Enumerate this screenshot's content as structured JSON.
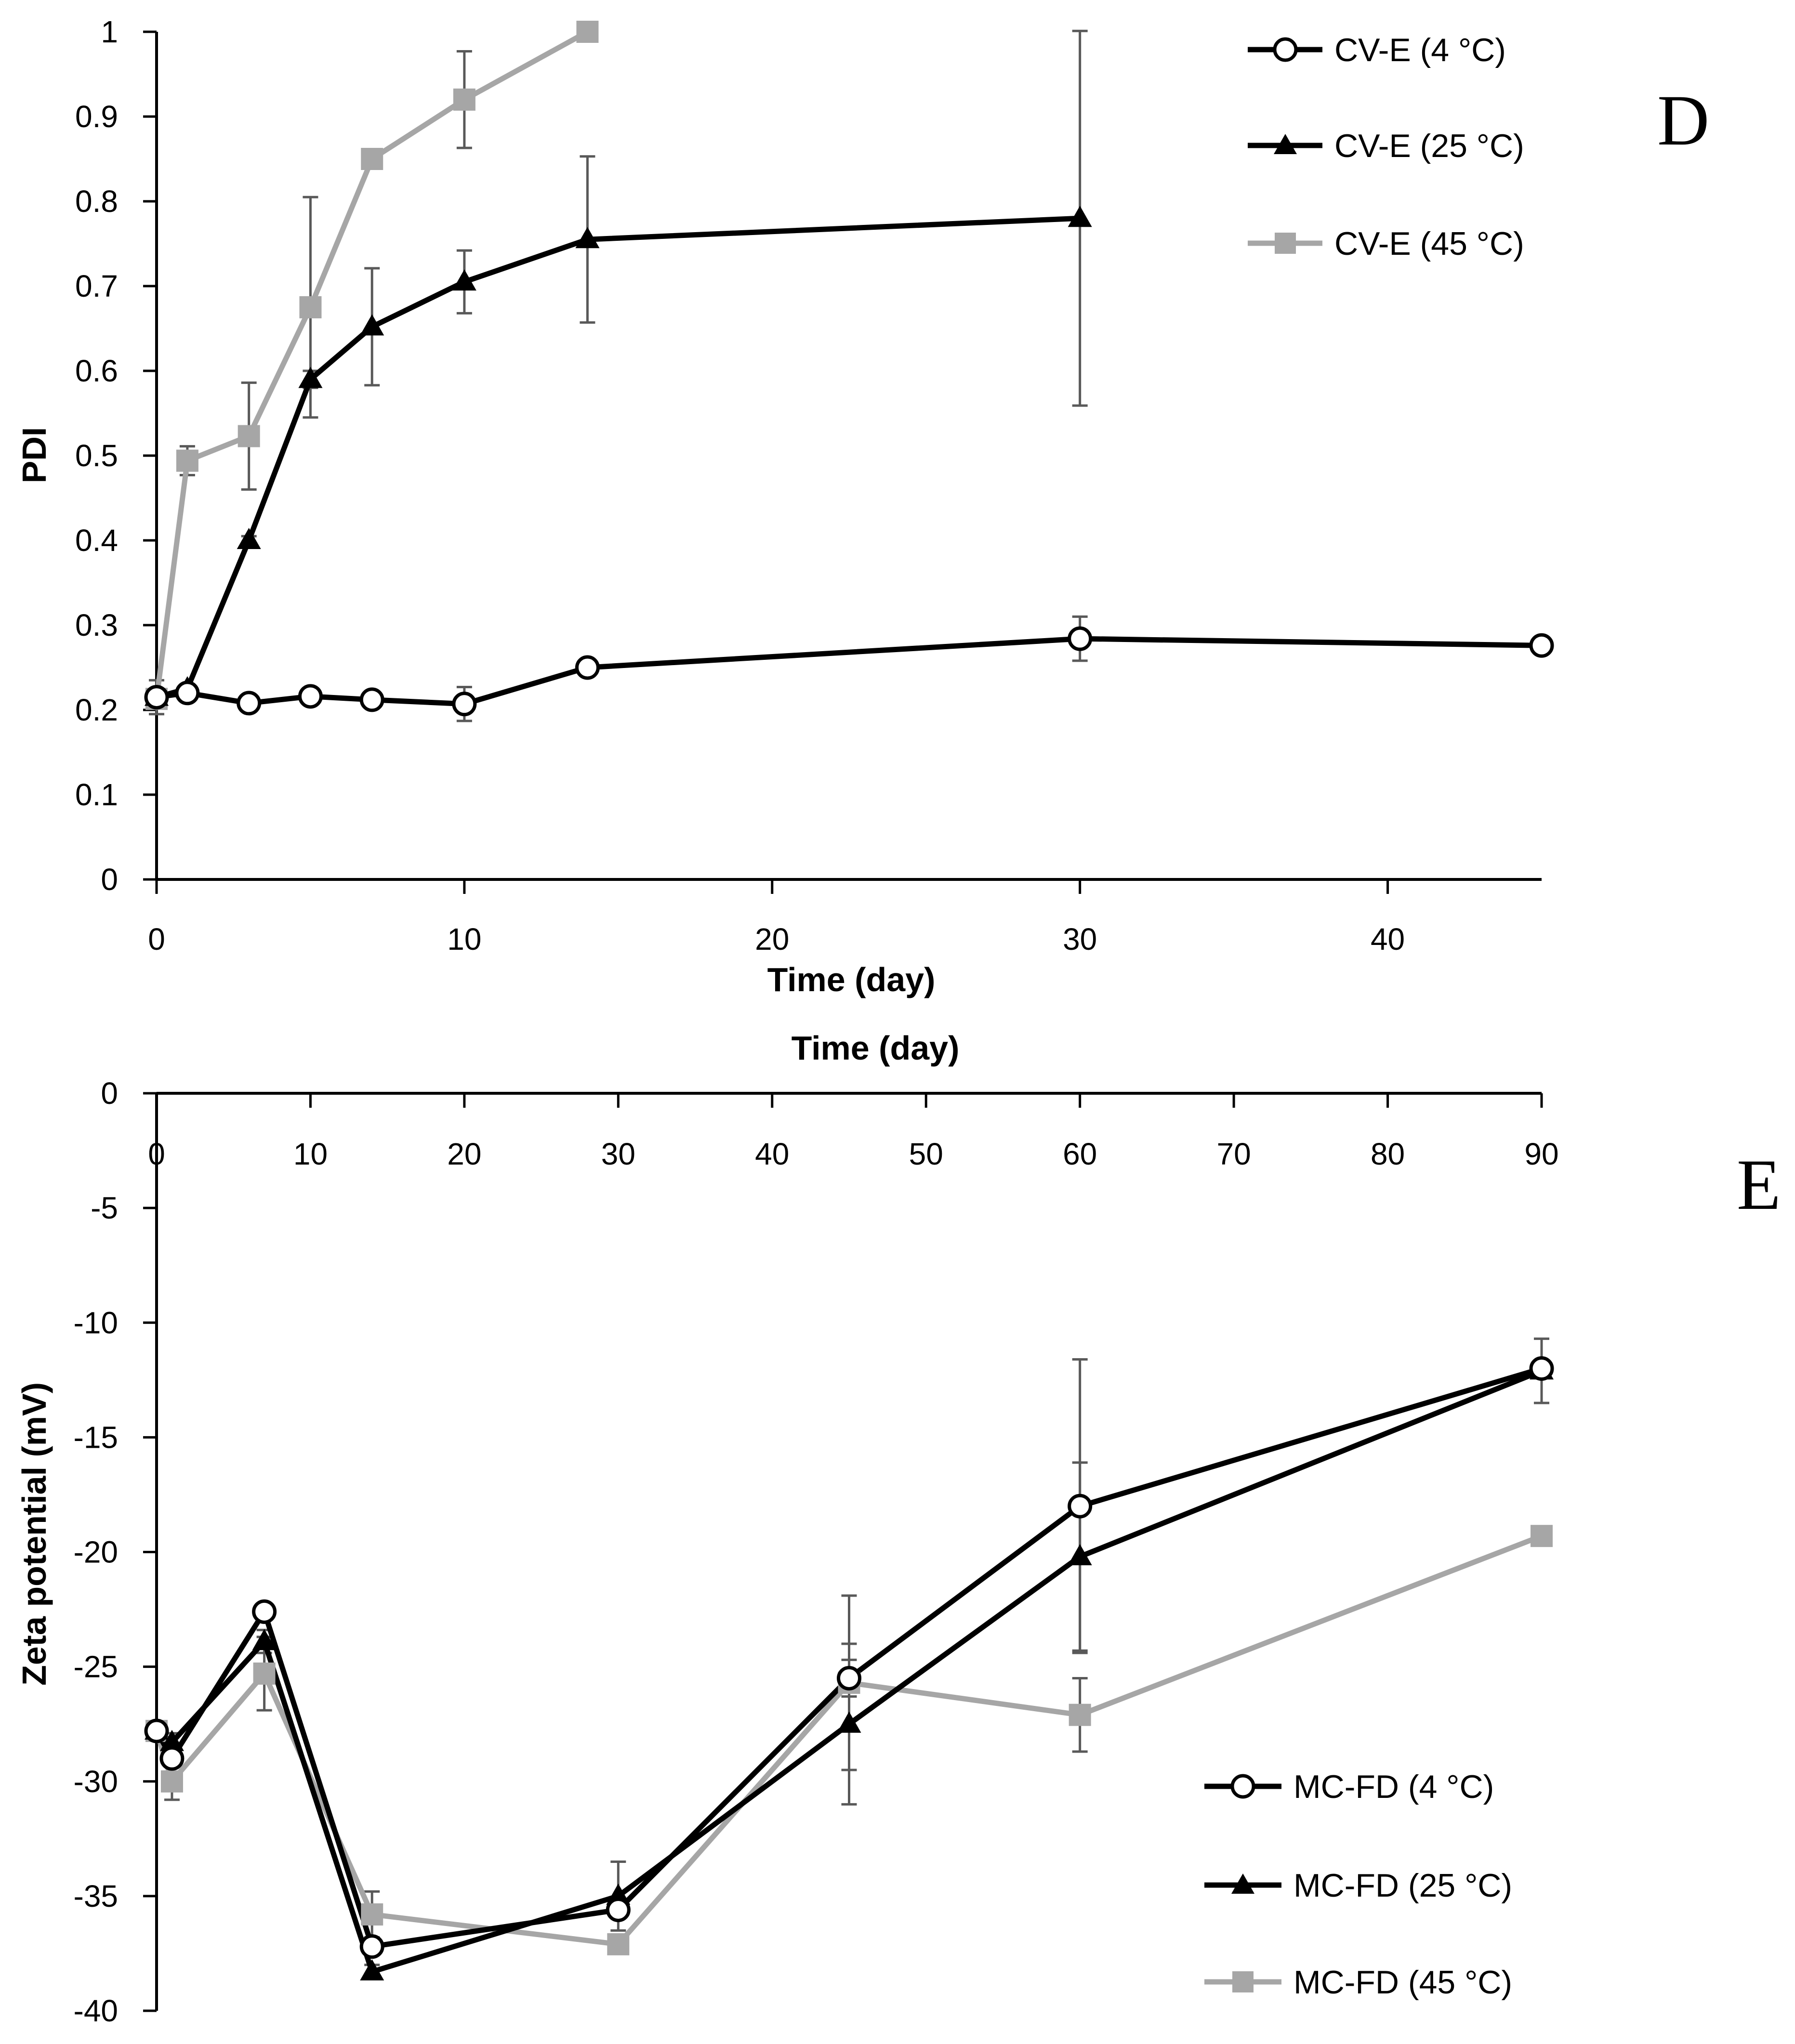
{
  "colors": {
    "black_series": "#000000",
    "gray_series": "#a6a6a6",
    "error_bar": "#595959"
  },
  "chart_data": [
    {
      "panel": "D",
      "type": "line",
      "xlabel": "Time (day)",
      "ylabel": "PDI",
      "xlim": [
        0,
        45
      ],
      "ylim": [
        0,
        1
      ],
      "xticks": [
        0,
        10,
        20,
        30,
        40
      ],
      "yticks": [
        0,
        0.1,
        0.2,
        0.3,
        0.4,
        0.5,
        0.6,
        0.7,
        0.8,
        0.9,
        1
      ],
      "ytick_labels": [
        "0",
        "0.1",
        "0.2",
        "0.3",
        "0.4",
        "0.5",
        "0.6",
        "0.7",
        "0.8",
        "0.9",
        "1"
      ],
      "legend_position": "top-right",
      "series": [
        {
          "name": "CV-E (4 °C)",
          "marker": "circle-open",
          "color": "#000000",
          "x": [
            0,
            1,
            3,
            5,
            7,
            10,
            14,
            30,
            45
          ],
          "y": [
            0.215,
            0.22,
            0.208,
            0.216,
            0.212,
            0.207,
            0.25,
            0.284,
            0.276
          ],
          "err": [
            0.02,
            0.005,
            0.005,
            0.005,
            0.005,
            0.02,
            0.006,
            0.026,
            0.005
          ]
        },
        {
          "name": "CV-E (25 °C)",
          "marker": "triangle-filled",
          "color": "#000000",
          "x": [
            0,
            1,
            3,
            5,
            7,
            10,
            14,
            30
          ],
          "y": [
            0.215,
            0.225,
            0.4,
            0.59,
            0.652,
            0.705,
            0.755,
            0.78
          ],
          "err": [
            0.01,
            0.005,
            0.005,
            0.01,
            0.069,
            0.037,
            0.098,
            0.221
          ]
        },
        {
          "name": "CV-E (45 °C)",
          "marker": "square-filled",
          "color": "#a6a6a6",
          "x": [
            0,
            1,
            3,
            5,
            7,
            10,
            14
          ],
          "y": [
            0.213,
            0.494,
            0.523,
            0.675,
            0.85,
            0.92,
            1.0
          ],
          "err": [
            0.01,
            0.017,
            0.063,
            0.13,
            0.005,
            0.057,
            0.005
          ]
        }
      ]
    },
    {
      "panel": "E",
      "type": "line",
      "xlabel": "Time (day)",
      "ylabel": "Zeta potential (mV)",
      "xlim": [
        0,
        90
      ],
      "ylim": [
        -40,
        0
      ],
      "xticks": [
        0,
        10,
        20,
        30,
        40,
        50,
        60,
        70,
        80,
        90
      ],
      "yticks": [
        0,
        -5,
        -10,
        -15,
        -20,
        -25,
        -30,
        -35,
        -40
      ],
      "ytick_labels": [
        "0",
        "-5",
        "-10",
        "-15",
        "-20",
        "-25",
        "-30",
        "-35",
        "-40"
      ],
      "legend_position": "bottom-right",
      "series": [
        {
          "name": "MC-FD (4 °C)",
          "marker": "circle-open",
          "color": "#000000",
          "x": [
            0,
            1,
            7,
            14,
            30,
            45,
            60,
            90
          ],
          "y": [
            -27.8,
            -29.0,
            -22.6,
            -37.2,
            -35.6,
            -25.5,
            -18.0,
            -12.0
          ],
          "err": [
            0.2,
            0.3,
            0.3,
            0.3,
            0.3,
            0.8,
            6.4,
            0.3
          ]
        },
        {
          "name": "MC-FD (25 °C)",
          "marker": "triangle-filled",
          "color": "#000000",
          "x": [
            0,
            1,
            7,
            14,
            30,
            45,
            60,
            90
          ],
          "y": [
            -27.8,
            -28.3,
            -23.9,
            -38.3,
            -35.0,
            -27.5,
            -20.2,
            -12.1
          ],
          "err": [
            0.2,
            0.4,
            0.5,
            0.3,
            1.5,
            3.5,
            4.1,
            1.4
          ]
        },
        {
          "name": "MC-FD (45 °C)",
          "marker": "square-filled",
          "color": "#a6a6a6",
          "x": [
            0,
            1,
            7,
            14,
            30,
            45,
            60,
            90
          ],
          "y": [
            -27.8,
            -30.0,
            -25.3,
            -35.8,
            -37.1,
            -25.7,
            -27.1,
            -19.3
          ],
          "err": [
            0.2,
            0.8,
            1.6,
            1.0,
            0.3,
            3.8,
            1.6,
            0.3
          ]
        }
      ]
    }
  ]
}
